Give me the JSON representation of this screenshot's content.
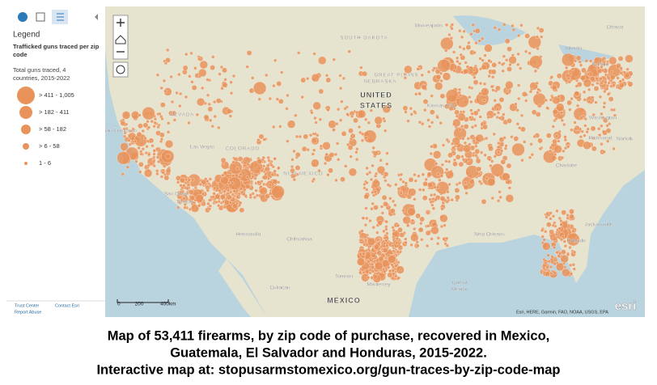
{
  "panel": {
    "legend_title": "Legend",
    "layer_title": "Trafficked guns traced per zip code",
    "field_title": "Total guns traced, 4 countries, 2015-2022",
    "classes": [
      "> 411 - 1,005",
      "> 182 - 411",
      "> 58 - 182",
      "> 6 - 58",
      "1 - 6"
    ],
    "footer_links": [
      "Trust Center",
      "Contact Esri",
      "Report Abuse"
    ]
  },
  "map": {
    "labels": [
      "SOUTH DAKOTA",
      "GREAT PLAINS",
      "NEBRASKA",
      "UNITED",
      "STATES",
      "NEVADA",
      "COLORADO",
      "NEW MEXICO",
      "MÉXICO",
      "Minneapolis",
      "Toronto",
      "Ottawa",
      "Buffalo",
      "Washington",
      "Richmond",
      "Norfolk",
      "Charlotte",
      "Jacksonville",
      "Orlando",
      "New Orleans",
      "Kansas City",
      "San Francisco",
      "Las Vegas",
      "San Diego",
      "Tijuana",
      "Hermosillo",
      "Chihuahua",
      "Torreon",
      "Culiacan",
      "Monterrey",
      "Gulf of",
      "Mexico"
    ],
    "scale": [
      "0",
      "200",
      "400km"
    ],
    "attribution": "Esri, HERE, Garmin, FAO, NOAA, USGS, EPA",
    "logo": "esri"
  },
  "caption": [
    "Map of 53,411 firearms, by zip code of purchase, recovered in Mexico,",
    "Guatemala, El Salvador and Honduras, 2015-2022.",
    "Interactive map at: stopusarmstomexico.org/gun-traces-by-zip-code-map"
  ]
}
